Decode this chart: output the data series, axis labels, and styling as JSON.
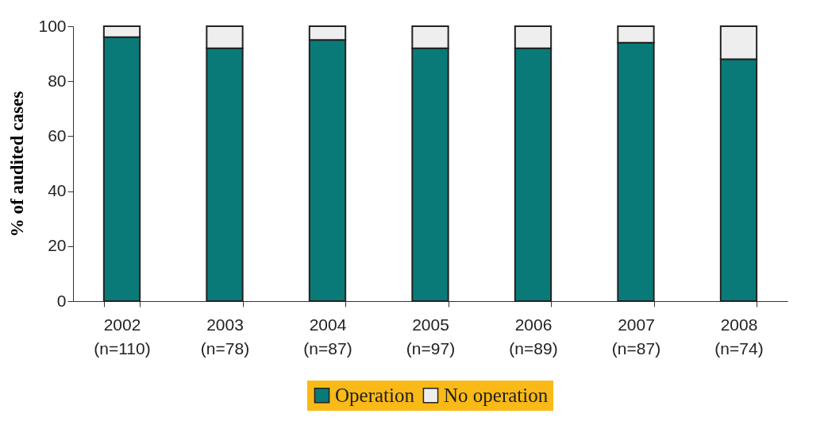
{
  "chart_data": {
    "type": "bar",
    "stacked": true,
    "ylabel": "% of audited cases",
    "categories": [
      "2002\n(n=110)",
      "2003\n(n=78)",
      "2004\n(n=87)",
      "2005\n(n=97)",
      "2006\n(n=89)",
      "2007\n(n=87)",
      "2008\n(n=74)"
    ],
    "series": [
      {
        "name": "Operation",
        "color": "#0a7a78",
        "values": [
          96,
          92,
          95,
          92,
          92,
          94,
          88
        ]
      },
      {
        "name": "No operation",
        "color": "#eeeeee",
        "values": [
          4,
          8,
          5,
          8,
          8,
          6,
          12
        ]
      }
    ],
    "ylim": [
      0,
      100
    ],
    "yticks": [
      0,
      20,
      40,
      60,
      80,
      100
    ],
    "grid": false,
    "legend": "bottom"
  }
}
